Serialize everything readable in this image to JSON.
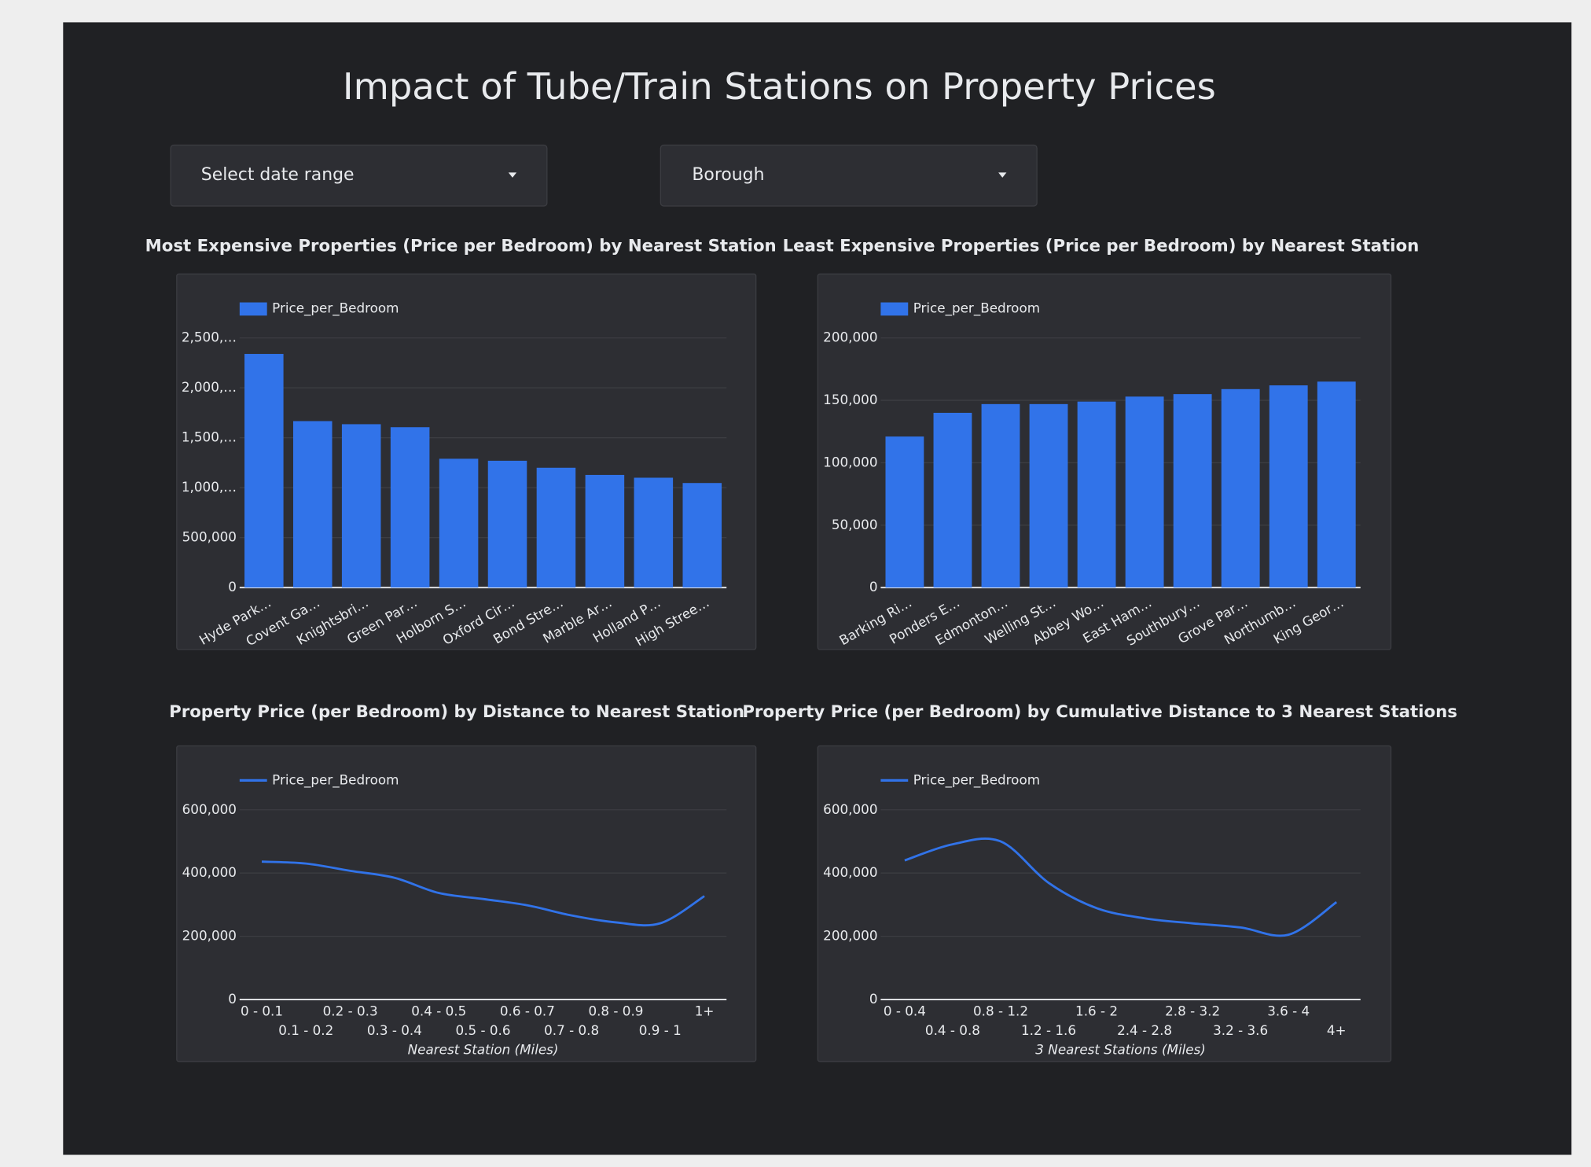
{
  "header": {
    "title": "Impact of Tube/Train Stations on Property Prices"
  },
  "filters": [
    {
      "label": "Select date range"
    },
    {
      "label": "Borough"
    }
  ],
  "chart_data": [
    {
      "type": "bar",
      "title": "Most Expensive Properties (Price per Bedroom) by Nearest Station",
      "categories": [
        "Hyde Park…",
        "Covent Ga…",
        "Knightsbri…",
        "Green Par…",
        "Holborn S…",
        "Oxford Cir…",
        "Bond Stre…",
        "Marble Ar…",
        "Holland P…",
        "High Stree…"
      ],
      "series": [
        {
          "name": "Price_per_Bedroom",
          "color": "#3173e9",
          "values": [
            2340000,
            1667000,
            1636000,
            1606000,
            1290000,
            1270000,
            1200000,
            1128000,
            1100000,
            1047000
          ]
        }
      ],
      "ylim": [
        0,
        2500000
      ],
      "yticks": [
        0,
        {
          "value": 500000,
          "label": "500,000"
        },
        {
          "value": 1000000,
          "label": "1,000,…"
        },
        {
          "value": 1500000,
          "label": "1,500,…"
        },
        {
          "value": 2000000,
          "label": "2,000,…"
        },
        {
          "value": 2500000,
          "label": "2,500,…"
        }
      ],
      "grid": true
    },
    {
      "type": "bar",
      "title": "Least Expensive Properties (Price per Bedroom) by Nearest Station",
      "categories": [
        "Barking Ri…",
        "Ponders E…",
        "Edmonton…",
        "Welling St…",
        "Abbey Wo…",
        "East Ham…",
        "Southbury…",
        "Grove Par…",
        "Northumb…",
        "King Geor…"
      ],
      "series": [
        {
          "name": "Price_per_Bedroom",
          "color": "#3173e9",
          "values": [
            121000,
            140000,
            147000,
            147000,
            149000,
            153000,
            155000,
            159000,
            162000,
            165000
          ]
        }
      ],
      "ylim": [
        0,
        200000
      ],
      "yticks": [
        0,
        {
          "value": 50000,
          "label": "50,000"
        },
        {
          "value": 100000,
          "label": "100,000"
        },
        {
          "value": 150000,
          "label": "150,000"
        },
        {
          "value": 200000,
          "label": "200,000"
        }
      ],
      "grid": true
    },
    {
      "type": "line",
      "title": "Property Price (per Bedroom) by Distance to Nearest Station",
      "x_label": "Nearest Station (Miles)",
      "categories": [
        "0 - 0.1",
        "0.1 - 0.2",
        "0.2 - 0.3",
        "0.3 - 0.4",
        "0.4 - 0.5",
        "0.5 - 0.6",
        "0.6 - 0.7",
        "0.7 - 0.8",
        "0.8 - 0.9",
        "0.9 - 1",
        "1+"
      ],
      "series": [
        {
          "name": "Price_per_Bedroom",
          "color": "#3173e9",
          "values": [
            436000,
            430000,
            407000,
            385000,
            337000,
            318000,
            298000,
            266000,
            244000,
            241000,
            327000
          ]
        }
      ],
      "ylim": [
        0,
        600000
      ],
      "yticks": [
        0,
        {
          "value": 200000,
          "label": "200,000"
        },
        {
          "value": 400000,
          "label": "400,000"
        },
        {
          "value": 600000,
          "label": "600,000"
        }
      ],
      "grid": true
    },
    {
      "type": "line",
      "title": "Property Price (per Bedroom) by Cumulative Distance to 3 Nearest Stations",
      "x_label": "3 Nearest Stations (Miles)",
      "categories": [
        "0 - 0.4",
        "0.4 - 0.8",
        "0.8 - 1.2",
        "1.2 - 1.6",
        "1.6 - 2",
        "2.4 - 2.8",
        "2.8 - 3.2",
        "3.2 - 3.6",
        "3.6 - 4",
        "4+"
      ],
      "series": [
        {
          "name": "Price_per_Bedroom",
          "color": "#3173e9",
          "values": [
            440000,
            491000,
            500000,
            369000,
            289000,
            257000,
            241000,
            228000,
            205000,
            308000
          ]
        }
      ],
      "ylim": [
        0,
        600000
      ],
      "yticks": [
        0,
        {
          "value": 200000,
          "label": "200,000"
        },
        {
          "value": 400000,
          "label": "400,000"
        },
        {
          "value": 600000,
          "label": "600,000"
        }
      ],
      "grid": true
    }
  ]
}
